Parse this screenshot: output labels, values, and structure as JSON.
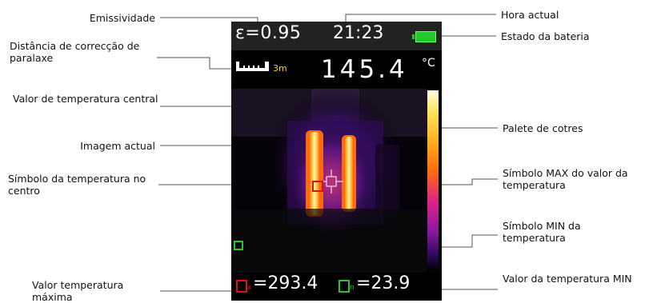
{
  "labels": {
    "emissivity": "Emissividade",
    "current_time": "Hora actual",
    "parallax": "Distância de correcção de paralaxe",
    "battery": "Estado da bateria",
    "center_temp_value": "Valor de temperatura central",
    "current_image": "Imagem actual",
    "palette": "Palete de cotres",
    "center_symbol": "Símbolo da temperatura no centro",
    "max_symbol": "Símbolo MAX do valor da temperatura",
    "min_symbol": "Símbolo MIN da temperatura",
    "max_value": "Valor temperatura máxima",
    "min_value": "Valor da temperatura MIN"
  },
  "screen": {
    "emissivity": "ε=0.95",
    "time": "21:23",
    "distance": "3m",
    "center_temp": "145.4",
    "unit": "°C",
    "max_marker": "x",
    "max_temp": "=293.4",
    "min_marker": "n",
    "min_temp": "=23.9"
  },
  "colors": {
    "battery": "#22c92a",
    "max_symbol": "#e01010",
    "min_symbol": "#22c92a"
  }
}
